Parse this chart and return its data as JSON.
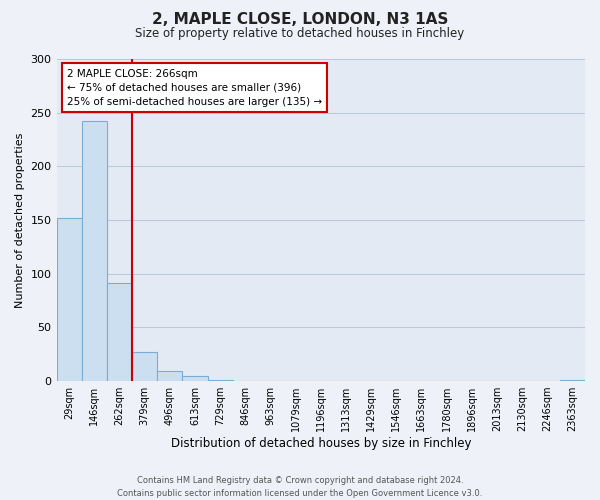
{
  "title_line1": "2, MAPLE CLOSE, LONDON, N3 1AS",
  "title_line2": "Size of property relative to detached houses in Finchley",
  "xlabel": "Distribution of detached houses by size in Finchley",
  "ylabel": "Number of detached properties",
  "bar_labels": [
    "29sqm",
    "146sqm",
    "262sqm",
    "379sqm",
    "496sqm",
    "613sqm",
    "729sqm",
    "846sqm",
    "963sqm",
    "1079sqm",
    "1196sqm",
    "1313sqm",
    "1429sqm",
    "1546sqm",
    "1663sqm",
    "1780sqm",
    "1896sqm",
    "2013sqm",
    "2130sqm",
    "2246sqm",
    "2363sqm"
  ],
  "bar_values": [
    152,
    242,
    91,
    27,
    9,
    5,
    1,
    0,
    0,
    0,
    0,
    0,
    0,
    0,
    0,
    0,
    0,
    0,
    0,
    0,
    1
  ],
  "bar_color": "#ccdff0",
  "bar_edgecolor": "#7aadd4",
  "ylim": [
    0,
    300
  ],
  "yticks": [
    0,
    50,
    100,
    150,
    200,
    250,
    300
  ],
  "property_line_index": 2,
  "property_line_color": "#cc0000",
  "annotation_title": "2 MAPLE CLOSE: 266sqm",
  "annotation_line1": "← 75% of detached houses are smaller (396)",
  "annotation_line2": "25% of semi-detached houses are larger (135) →",
  "annotation_box_color": "#ffffff",
  "annotation_box_edgecolor": "#cc0000",
  "footer_line1": "Contains HM Land Registry data © Crown copyright and database right 2024.",
  "footer_line2": "Contains public sector information licensed under the Open Government Licence v3.0.",
  "bg_color": "#eef2f8",
  "plot_bg_color": "#e4eaf4"
}
